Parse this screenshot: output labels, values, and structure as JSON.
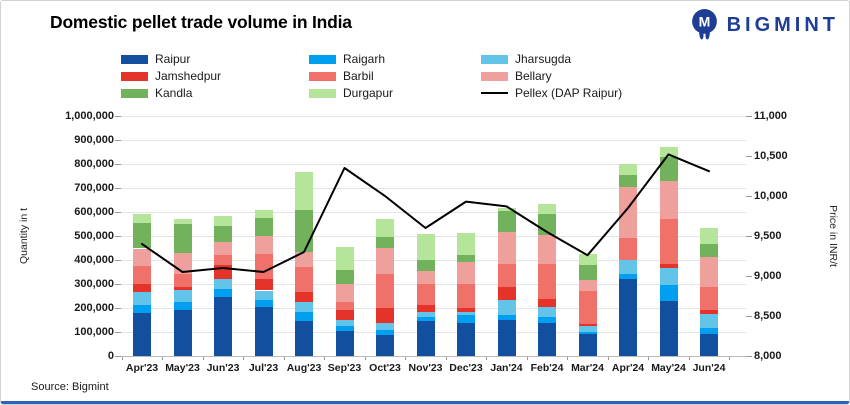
{
  "header": {
    "title": "Domestic pellet trade volume in India",
    "brand": "BIGMINT"
  },
  "footer": {
    "source": "Source: Bigmint"
  },
  "colors": {
    "brand_blue": "#1e3e96",
    "accent_bottom_bar": "#2e63bb",
    "pellex_line": "#000000"
  },
  "chart_data": {
    "type": "bar",
    "subtype": "stacked-bars-with-line",
    "title": "Domestic pellet trade volume in India",
    "ylabel_left": "Quantity in t",
    "ylabel_right": "Price in INR/t",
    "ylim_left": [
      0,
      1000000
    ],
    "ytick_step_left": 100000,
    "ylim_right": [
      8000,
      11000
    ],
    "ytick_step_right": 500,
    "grid": true,
    "legend_position": "top",
    "categories": [
      "Apr'23",
      "May'23",
      "Jun'23",
      "Jul'23",
      "Aug'23",
      "Sep'23",
      "Oct'23",
      "Nov'23",
      "Dec'23",
      "Jan'24",
      "Feb'24",
      "Mar'24",
      "Apr'24",
      "May'24",
      "Jun'24"
    ],
    "series": [
      {
        "name": "Raipur",
        "color": "#134f9f",
        "values": [
          178000,
          192000,
          247000,
          205000,
          144000,
          103000,
          89000,
          144000,
          137000,
          151000,
          137000,
          92000,
          319000,
          228000,
          93000
        ]
      },
      {
        "name": "Raigarh",
        "color": "#009ff0",
        "values": [
          34000,
          34000,
          34000,
          27000,
          41000,
          20000,
          21000,
          20000,
          34000,
          20000,
          27000,
          10000,
          21000,
          67000,
          23000
        ]
      },
      {
        "name": "Jharsugda",
        "color": "#62c4e8",
        "values": [
          55000,
          48000,
          41000,
          41000,
          41000,
          28000,
          27000,
          21000,
          14000,
          62000,
          41000,
          25000,
          61000,
          72000,
          59000
        ]
      },
      {
        "name": "Jamshedpur",
        "color": "#e5332a",
        "values": [
          34000,
          14000,
          59000,
          48000,
          41000,
          41000,
          62000,
          27000,
          14000,
          55000,
          34000,
          5000,
          0,
          18000,
          17000
        ]
      },
      {
        "name": "Barbil",
        "color": "#f0716a",
        "values": [
          76000,
          55000,
          41000,
          103000,
          103000,
          34000,
          143000,
          89000,
          102000,
          96000,
          144000,
          140000,
          89000,
          186000,
          96000
        ]
      },
      {
        "name": "Bellary",
        "color": "#efa09c",
        "values": [
          71000,
          85000,
          55000,
          75000,
          62000,
          75000,
          107000,
          55000,
          89000,
          134000,
          120000,
          45000,
          213000,
          158000,
          123000
        ]
      },
      {
        "name": "Kandla",
        "color": "#72b25c",
        "values": [
          107000,
          120000,
          64000,
          75000,
          178000,
          58000,
          47000,
          44000,
          32000,
          85000,
          88000,
          61000,
          50000,
          99000,
          55000
        ]
      },
      {
        "name": "Durgapur",
        "color": "#b4e59a",
        "values": [
          37000,
          23000,
          41000,
          35000,
          157000,
          96000,
          77000,
          110000,
          92000,
          13000,
          41000,
          45000,
          46000,
          44000,
          68000
        ]
      }
    ],
    "line_series": {
      "name": "Pellex (DAP Raipur)",
      "color": "#000000",
      "values": [
        9400,
        9050,
        9100,
        9050,
        9300,
        10350,
        10000,
        9600,
        9930,
        9870,
        9550,
        9260,
        9850,
        10520,
        10310
      ]
    }
  }
}
